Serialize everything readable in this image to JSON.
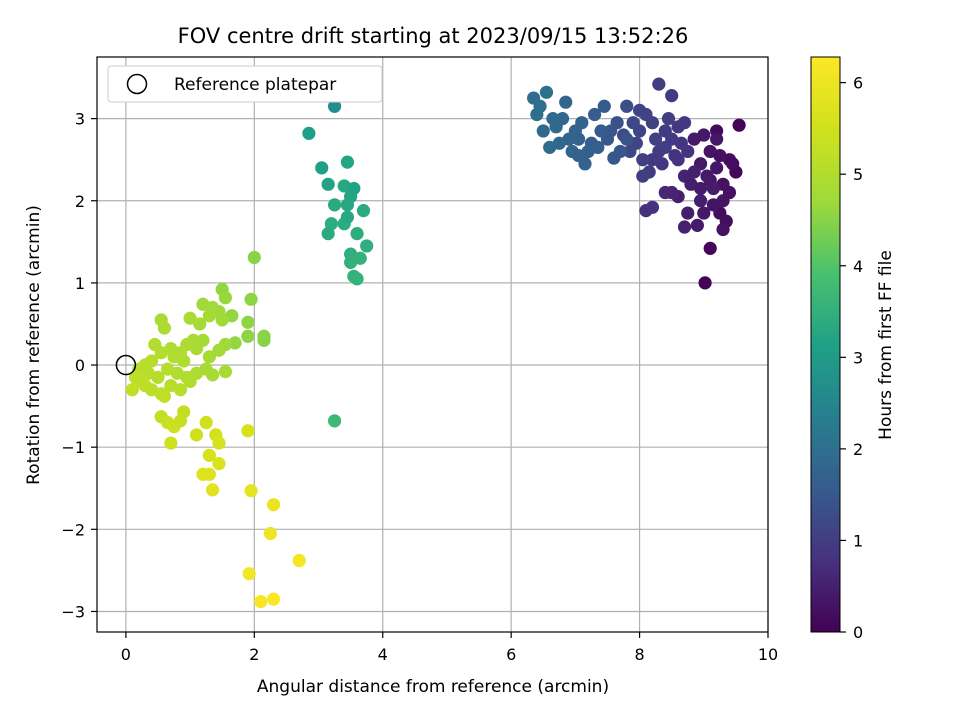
{
  "chart_data": {
    "type": "scatter",
    "title": "FOV centre drift starting at 2023/09/15 13:52:26",
    "xlabel": "Angular distance from reference (arcmin)",
    "ylabel": "Rotation from reference (arcmin)",
    "xlim": [
      -0.45,
      10
    ],
    "ylim": [
      -3.25,
      3.75
    ],
    "xticks": [
      0,
      2,
      4,
      6,
      8,
      10
    ],
    "yticks": [
      -3,
      -2,
      -1,
      0,
      1,
      2,
      3
    ],
    "xtick_labels": [
      "0",
      "2",
      "4",
      "6",
      "8",
      "10"
    ],
    "ytick_labels": [
      "−3",
      "−2",
      "−1",
      "0",
      "1",
      "2",
      "3"
    ],
    "grid": true,
    "legend": {
      "placement": "upper-left",
      "entries": [
        {
          "label": "Reference platepar",
          "marker": "open-circle",
          "x": 0,
          "y": 0
        }
      ]
    },
    "colorbar": {
      "label": "Hours from first FF file",
      "colormap": "viridis",
      "range": [
        0,
        6.28
      ],
      "ticks": [
        0,
        1,
        2,
        3,
        4,
        5,
        6
      ],
      "tick_labels": [
        "0",
        "1",
        "2",
        "3",
        "4",
        "5",
        "6"
      ]
    },
    "series": [
      {
        "group": "dark-purple",
        "points": [
          [
            9.02,
            1.0
          ],
          [
            9.1,
            1.42
          ],
          [
            9.55,
            2.92
          ],
          [
            9.2,
            2.85
          ],
          [
            9.4,
            2.5
          ],
          [
            9.5,
            2.35
          ],
          [
            9.3,
            2.2
          ],
          [
            9.1,
            2.6
          ],
          [
            8.95,
            2.45
          ],
          [
            8.85,
            2.75
          ],
          [
            9.25,
            1.85
          ],
          [
            9.35,
            1.75
          ],
          [
            9.3,
            1.65
          ],
          [
            9.15,
            1.95
          ],
          [
            9.0,
            1.85
          ],
          [
            8.9,
            1.7
          ],
          [
            8.75,
            1.85
          ],
          [
            8.6,
            2.05
          ],
          [
            8.7,
            2.3
          ],
          [
            9.1,
            2.25
          ],
          [
            9.4,
            2.1
          ],
          [
            8.8,
            2.2
          ],
          [
            9.2,
            2.4
          ],
          [
            9.05,
            2.3
          ],
          [
            8.95,
            2.15
          ],
          [
            9.3,
            2.0
          ],
          [
            8.7,
            1.68
          ],
          [
            8.5,
            2.1
          ],
          [
            8.4,
            2.1
          ],
          [
            8.95,
            2.0
          ],
          [
            9.45,
            2.45
          ],
          [
            9.2,
            2.75
          ],
          [
            9.0,
            2.8
          ],
          [
            8.85,
            2.35
          ],
          [
            9.15,
            2.15
          ],
          [
            9.25,
            2.55
          ]
        ],
        "hours": [
          0.05,
          0.1,
          0.05,
          0.15,
          0.2,
          0.12,
          0.25,
          0.3,
          0.35,
          0.4,
          0.18,
          0.22,
          0.28,
          0.32,
          0.38,
          0.42,
          0.45,
          0.5,
          0.55,
          0.33,
          0.27,
          0.48,
          0.36,
          0.4,
          0.44,
          0.3,
          0.52,
          0.6,
          0.62,
          0.46,
          0.2,
          0.34,
          0.38,
          0.5,
          0.42,
          0.26
        ]
      },
      {
        "group": "blue-purple",
        "points": [
          [
            8.3,
            3.42
          ],
          [
            8.5,
            3.28
          ],
          [
            8.0,
            3.1
          ],
          [
            8.2,
            2.95
          ],
          [
            8.4,
            2.85
          ],
          [
            8.6,
            2.9
          ],
          [
            8.75,
            2.6
          ],
          [
            8.55,
            2.55
          ],
          [
            8.35,
            2.45
          ],
          [
            8.15,
            2.35
          ],
          [
            8.05,
            2.3
          ],
          [
            8.25,
            2.75
          ],
          [
            7.95,
            2.7
          ],
          [
            8.45,
            3.0
          ],
          [
            8.65,
            2.7
          ],
          [
            8.7,
            2.95
          ],
          [
            8.1,
            1.88
          ],
          [
            8.2,
            1.92
          ],
          [
            8.3,
            2.6
          ],
          [
            8.0,
            2.85
          ],
          [
            7.9,
            2.95
          ],
          [
            8.1,
            3.05
          ],
          [
            8.5,
            2.75
          ],
          [
            8.6,
            2.5
          ],
          [
            7.85,
            2.6
          ],
          [
            7.75,
            2.8
          ],
          [
            8.2,
            2.5
          ],
          [
            8.4,
            2.65
          ],
          [
            8.05,
            2.5
          ],
          [
            7.8,
            3.15
          ]
        ],
        "hours": [
          1.0,
          0.95,
          1.1,
          1.05,
          0.95,
          0.9,
          0.85,
          0.8,
          0.9,
          0.95,
          1.0,
          1.05,
          1.15,
          1.0,
          0.88,
          0.92,
          0.75,
          0.8,
          0.98,
          1.12,
          1.2,
          1.1,
          0.95,
          0.82,
          1.2,
          1.25,
          0.92,
          1.0,
          1.05,
          1.3
        ]
      },
      {
        "group": "blue",
        "points": [
          [
            6.35,
            3.25
          ],
          [
            6.55,
            3.32
          ],
          [
            6.4,
            3.05
          ],
          [
            6.5,
            2.85
          ],
          [
            6.7,
            2.9
          ],
          [
            6.8,
            3.0
          ],
          [
            6.6,
            2.65
          ],
          [
            6.9,
            2.75
          ],
          [
            6.95,
            2.6
          ],
          [
            7.05,
            2.55
          ],
          [
            7.15,
            2.45
          ],
          [
            7.0,
            2.85
          ],
          [
            7.1,
            2.95
          ],
          [
            7.3,
            3.05
          ],
          [
            7.45,
            3.15
          ],
          [
            7.25,
            2.7
          ],
          [
            7.2,
            2.6
          ],
          [
            6.75,
            2.7
          ],
          [
            6.85,
            3.2
          ],
          [
            7.5,
            2.75
          ],
          [
            7.6,
            2.52
          ],
          [
            7.55,
            2.85
          ],
          [
            7.7,
            2.6
          ],
          [
            7.65,
            2.95
          ],
          [
            7.8,
            2.75
          ],
          [
            7.4,
            2.85
          ],
          [
            6.45,
            3.15
          ],
          [
            6.65,
            3.0
          ],
          [
            7.35,
            2.65
          ],
          [
            7.05,
            2.75
          ]
        ],
        "hours": [
          2.0,
          2.05,
          1.95,
          1.9,
          1.85,
          1.8,
          1.9,
          1.75,
          1.8,
          1.7,
          1.7,
          1.75,
          1.7,
          1.6,
          1.55,
          1.6,
          1.65,
          1.85,
          1.8,
          1.5,
          1.5,
          1.45,
          1.45,
          1.4,
          1.4,
          1.55,
          2.0,
          1.9,
          1.6,
          1.72
        ]
      },
      {
        "group": "teal",
        "points": [
          [
            3.25,
            3.15
          ],
          [
            2.85,
            2.82
          ],
          [
            3.05,
            2.4
          ],
          [
            3.15,
            2.2
          ],
          [
            3.45,
            2.47
          ],
          [
            3.4,
            2.18
          ],
          [
            3.55,
            2.15
          ],
          [
            3.5,
            2.05
          ],
          [
            3.45,
            1.95
          ],
          [
            3.25,
            1.95
          ],
          [
            3.7,
            1.88
          ],
          [
            3.2,
            1.72
          ],
          [
            3.4,
            1.72
          ],
          [
            3.15,
            1.6
          ],
          [
            3.6,
            1.6
          ],
          [
            3.75,
            1.45
          ],
          [
            3.5,
            1.35
          ],
          [
            3.65,
            1.3
          ],
          [
            3.5,
            1.25
          ],
          [
            3.55,
            1.08
          ],
          [
            3.6,
            1.05
          ],
          [
            3.25,
            -0.68
          ],
          [
            3.45,
            1.8
          ]
        ],
        "hours": [
          2.7,
          3.1,
          3.15,
          3.2,
          3.25,
          3.3,
          3.2,
          3.25,
          3.3,
          3.35,
          3.35,
          3.4,
          3.4,
          3.35,
          3.4,
          3.45,
          3.45,
          3.5,
          3.5,
          3.55,
          3.55,
          3.7,
          3.3
        ]
      },
      {
        "group": "green",
        "points": [
          [
            2.0,
            1.31
          ],
          [
            1.5,
            0.92
          ],
          [
            1.55,
            0.82
          ],
          [
            1.95,
            0.8
          ],
          [
            1.2,
            0.74
          ],
          [
            1.35,
            0.7
          ],
          [
            1.45,
            0.65
          ],
          [
            1.3,
            0.6
          ],
          [
            1.65,
            0.6
          ],
          [
            1.5,
            0.55
          ],
          [
            1.0,
            0.57
          ],
          [
            1.15,
            0.5
          ],
          [
            0.55,
            0.55
          ],
          [
            0.6,
            0.45
          ],
          [
            1.9,
            0.52
          ],
          [
            1.9,
            0.35
          ],
          [
            2.15,
            0.35
          ],
          [
            2.15,
            0.3
          ],
          [
            1.7,
            0.27
          ],
          [
            1.55,
            0.25
          ],
          [
            1.45,
            0.18
          ],
          [
            1.3,
            0.1
          ],
          [
            1.1,
            0.2
          ],
          [
            1.05,
            0.3
          ],
          [
            0.95,
            0.25
          ],
          [
            0.85,
            0.15
          ],
          [
            0.75,
            0.1
          ],
          [
            0.7,
            0.2
          ],
          [
            0.55,
            0.15
          ],
          [
            0.45,
            0.25
          ],
          [
            0.4,
            0.05
          ],
          [
            0.3,
            0.0
          ],
          [
            0.2,
            -0.05
          ],
          [
            0.35,
            -0.1
          ],
          [
            0.5,
            -0.15
          ],
          [
            0.65,
            -0.05
          ],
          [
            0.8,
            -0.1
          ],
          [
            0.95,
            -0.15
          ],
          [
            1.1,
            -0.1
          ],
          [
            1.25,
            -0.05
          ],
          [
            1.35,
            -0.12
          ],
          [
            1.55,
            -0.08
          ],
          [
            0.25,
            -0.2
          ],
          [
            0.4,
            -0.3
          ],
          [
            0.55,
            -0.35
          ],
          [
            0.7,
            -0.25
          ],
          [
            0.85,
            -0.3
          ],
          [
            0.15,
            -0.15
          ],
          [
            0.1,
            -0.3
          ],
          [
            0.3,
            -0.25
          ],
          [
            0.6,
            -0.38
          ],
          [
            1.0,
            -0.2
          ],
          [
            0.9,
            0.05
          ],
          [
            1.2,
            0.3
          ]
        ],
        "hours": [
          4.5,
          4.6,
          4.65,
          4.55,
          4.7,
          4.75,
          4.7,
          4.8,
          4.6,
          4.75,
          4.85,
          4.8,
          4.85,
          4.9,
          4.55,
          4.55,
          4.5,
          4.5,
          4.6,
          4.7,
          4.75,
          4.8,
          4.85,
          4.85,
          4.9,
          4.95,
          5.0,
          4.95,
          5.0,
          5.0,
          5.05,
          5.1,
          5.1,
          5.1,
          5.05,
          5.05,
          5.0,
          4.95,
          4.9,
          4.85,
          4.85,
          4.8,
          5.15,
          5.15,
          5.2,
          5.1,
          5.1,
          5.2,
          5.25,
          5.2,
          5.2,
          5.0,
          4.95,
          4.8
        ]
      },
      {
        "group": "yellow-green",
        "points": [
          [
            0.55,
            -0.63
          ],
          [
            0.65,
            -0.7
          ],
          [
            0.75,
            -0.75
          ],
          [
            0.85,
            -0.68
          ],
          [
            0.9,
            -0.57
          ],
          [
            0.7,
            -0.95
          ],
          [
            1.1,
            -0.85
          ],
          [
            1.25,
            -0.7
          ],
          [
            1.4,
            -0.85
          ],
          [
            1.45,
            -0.95
          ],
          [
            1.3,
            -1.1
          ],
          [
            1.45,
            -1.2
          ],
          [
            1.2,
            -1.33
          ],
          [
            1.3,
            -1.33
          ],
          [
            1.35,
            -1.52
          ],
          [
            1.9,
            -0.8
          ],
          [
            1.95,
            -1.53
          ]
        ],
        "hours": [
          5.3,
          5.35,
          5.4,
          5.35,
          5.3,
          5.45,
          5.5,
          5.5,
          5.55,
          5.6,
          5.6,
          5.65,
          5.7,
          5.75,
          5.8,
          5.6,
          5.85
        ]
      },
      {
        "group": "yellow",
        "points": [
          [
            2.3,
            -1.7
          ],
          [
            2.25,
            -2.05
          ],
          [
            2.7,
            -2.38
          ],
          [
            1.92,
            -2.54
          ],
          [
            2.1,
            -2.88
          ],
          [
            2.3,
            -2.85
          ]
        ],
        "hours": [
          5.95,
          6.0,
          6.1,
          6.1,
          6.2,
          6.25
        ]
      }
    ]
  }
}
